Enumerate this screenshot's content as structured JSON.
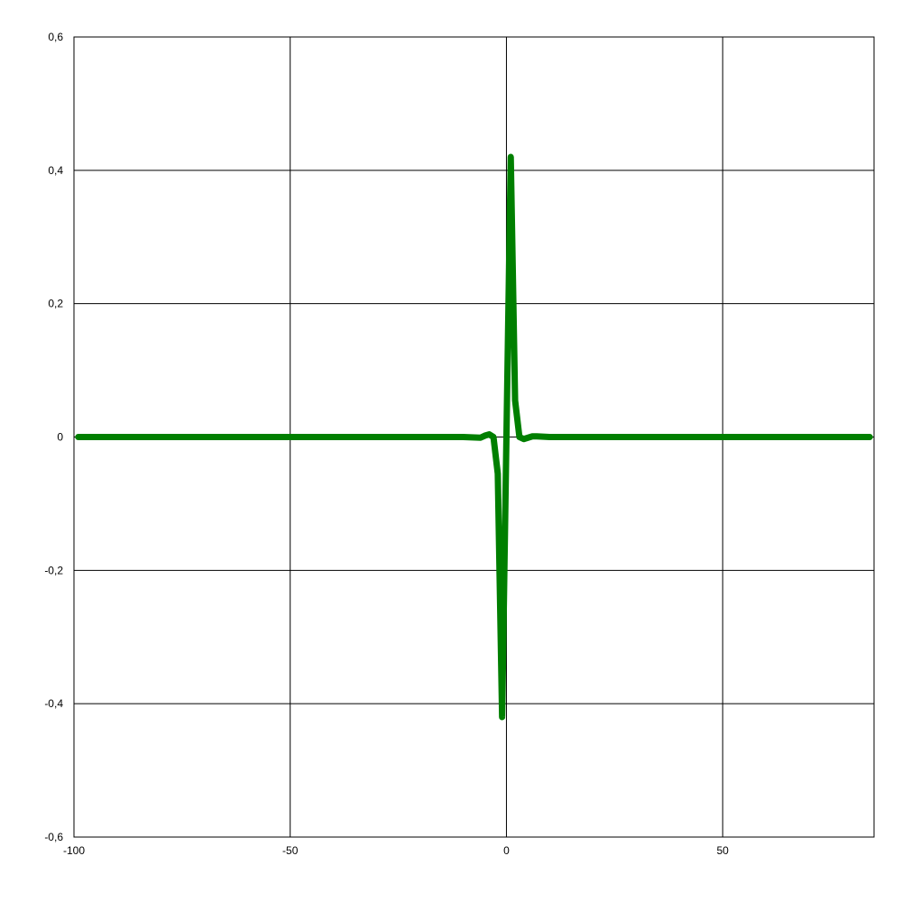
{
  "chart_data": {
    "type": "line",
    "title": "",
    "xlabel": "",
    "ylabel": "",
    "xlim": [
      -100,
      85
    ],
    "ylim": [
      -0.6,
      0.6
    ],
    "x_ticks": [
      -100,
      -50,
      0,
      50
    ],
    "x_tick_labels": [
      "-100",
      "-50",
      "0",
      "50"
    ],
    "y_ticks": [
      0.6,
      0.4,
      0.2,
      0,
      -0.2,
      -0.4,
      -0.6
    ],
    "y_tick_labels": [
      "0,6",
      "0,4",
      "0,2",
      "0",
      "-0,2",
      "-0,4",
      "-0,6"
    ],
    "grid": true,
    "line_color": "#007f00",
    "series": [
      {
        "x": [
          -99,
          -20,
          -10,
          -6,
          -5,
          -4,
          -3,
          -2,
          -1,
          0,
          1,
          2,
          3,
          4,
          5,
          6,
          7,
          10,
          20,
          84
        ],
        "y": [
          0,
          0,
          0,
          -0.001,
          0.002,
          0.004,
          0,
          -0.055,
          -0.42,
          0,
          0.42,
          0.055,
          0,
          -0.003,
          -0.001,
          0.001,
          0.001,
          0,
          0,
          0
        ]
      }
    ]
  }
}
